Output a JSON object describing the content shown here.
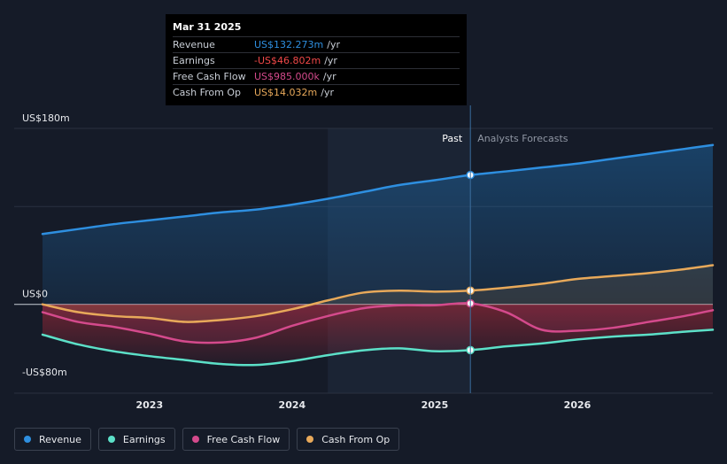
{
  "chart_data": {
    "type": "line",
    "ylim": [
      -80,
      180
    ],
    "xlim": [
      2022.25,
      2026.95
    ],
    "y_axis_labels": [
      {
        "value": 180,
        "label": "US$180m"
      },
      {
        "value": 0,
        "label": "US$0"
      },
      {
        "value": -80,
        "label": "-US$80m"
      }
    ],
    "x_ticks": [
      {
        "value": 2023,
        "label": "2023"
      },
      {
        "value": 2024,
        "label": "2024"
      },
      {
        "value": 2025,
        "label": "2025"
      },
      {
        "value": 2026,
        "label": "2026"
      }
    ],
    "past_label": "Past",
    "forecast_label": "Analysts Forecasts",
    "past_region_start": 2024.25,
    "divider_x": 2025.25,
    "series": [
      {
        "name": "Revenue",
        "color": "#2e8fe0",
        "points": [
          [
            2022.25,
            72
          ],
          [
            2022.5,
            77
          ],
          [
            2022.75,
            82
          ],
          [
            2023.0,
            86
          ],
          [
            2023.25,
            90
          ],
          [
            2023.5,
            94
          ],
          [
            2023.75,
            97
          ],
          [
            2024.0,
            102
          ],
          [
            2024.25,
            108
          ],
          [
            2024.5,
            115
          ],
          [
            2024.75,
            122
          ],
          [
            2025.0,
            127
          ],
          [
            2025.25,
            132.3
          ],
          [
            2025.5,
            136
          ],
          [
            2025.75,
            140
          ],
          [
            2026.0,
            144
          ],
          [
            2026.25,
            149
          ],
          [
            2026.5,
            154
          ],
          [
            2026.75,
            159
          ],
          [
            2026.95,
            163
          ]
        ]
      },
      {
        "name": "Earnings",
        "color": "#5ce0c8",
        "points": [
          [
            2022.25,
            -31
          ],
          [
            2022.5,
            -41
          ],
          [
            2022.75,
            -48
          ],
          [
            2023.0,
            -53
          ],
          [
            2023.25,
            -57
          ],
          [
            2023.5,
            -61
          ],
          [
            2023.75,
            -62
          ],
          [
            2024.0,
            -58
          ],
          [
            2024.25,
            -52
          ],
          [
            2024.5,
            -47
          ],
          [
            2024.75,
            -45
          ],
          [
            2025.0,
            -48
          ],
          [
            2025.25,
            -46.8
          ],
          [
            2025.5,
            -43
          ],
          [
            2025.75,
            -40
          ],
          [
            2026.0,
            -36
          ],
          [
            2026.25,
            -33
          ],
          [
            2026.5,
            -31
          ],
          [
            2026.75,
            -28
          ],
          [
            2026.95,
            -26
          ]
        ]
      },
      {
        "name": "Free Cash Flow",
        "color": "#d44a8c",
        "points": [
          [
            2022.25,
            -8
          ],
          [
            2022.5,
            -18
          ],
          [
            2022.75,
            -23
          ],
          [
            2023.0,
            -30
          ],
          [
            2023.25,
            -38
          ],
          [
            2023.5,
            -39
          ],
          [
            2023.75,
            -34
          ],
          [
            2024.0,
            -22
          ],
          [
            2024.25,
            -12
          ],
          [
            2024.5,
            -4
          ],
          [
            2024.75,
            -1
          ],
          [
            2025.0,
            -1
          ],
          [
            2025.25,
            1
          ],
          [
            2025.5,
            -8
          ],
          [
            2025.75,
            -26
          ],
          [
            2026.0,
            -27
          ],
          [
            2026.25,
            -24
          ],
          [
            2026.5,
            -18
          ],
          [
            2026.75,
            -12
          ],
          [
            2026.95,
            -6
          ]
        ]
      },
      {
        "name": "Cash From Op",
        "color": "#e8a95a",
        "points": [
          [
            2022.25,
            0
          ],
          [
            2022.5,
            -8
          ],
          [
            2022.75,
            -12
          ],
          [
            2023.0,
            -14
          ],
          [
            2023.25,
            -18
          ],
          [
            2023.5,
            -16
          ],
          [
            2023.75,
            -12
          ],
          [
            2024.0,
            -5
          ],
          [
            2024.25,
            4
          ],
          [
            2024.5,
            12
          ],
          [
            2024.75,
            14
          ],
          [
            2025.0,
            13
          ],
          [
            2025.25,
            14.03
          ],
          [
            2025.5,
            17
          ],
          [
            2025.75,
            21
          ],
          [
            2026.0,
            26
          ],
          [
            2026.25,
            29
          ],
          [
            2026.5,
            32
          ],
          [
            2026.75,
            36
          ],
          [
            2026.95,
            40
          ]
        ]
      }
    ]
  },
  "tooltip": {
    "date": "Mar 31 2025",
    "rows": [
      {
        "name": "Revenue",
        "value": "US$132.273m",
        "unit": "/yr",
        "color": "#2e8fe0"
      },
      {
        "name": "Earnings",
        "value": "-US$46.802m",
        "unit": "/yr",
        "color": "#f04848"
      },
      {
        "name": "Free Cash Flow",
        "value": "US$985.000k",
        "unit": "/yr",
        "color": "#d44a8c"
      },
      {
        "name": "Cash From Op",
        "value": "US$14.032m",
        "unit": "/yr",
        "color": "#e8a95a"
      }
    ]
  },
  "legend": [
    {
      "label": "Revenue",
      "color": "#2e8fe0"
    },
    {
      "label": "Earnings",
      "color": "#5ce0c8"
    },
    {
      "label": "Free Cash Flow",
      "color": "#d44a8c"
    },
    {
      "label": "Cash From Op",
      "color": "#e8a95a"
    }
  ]
}
